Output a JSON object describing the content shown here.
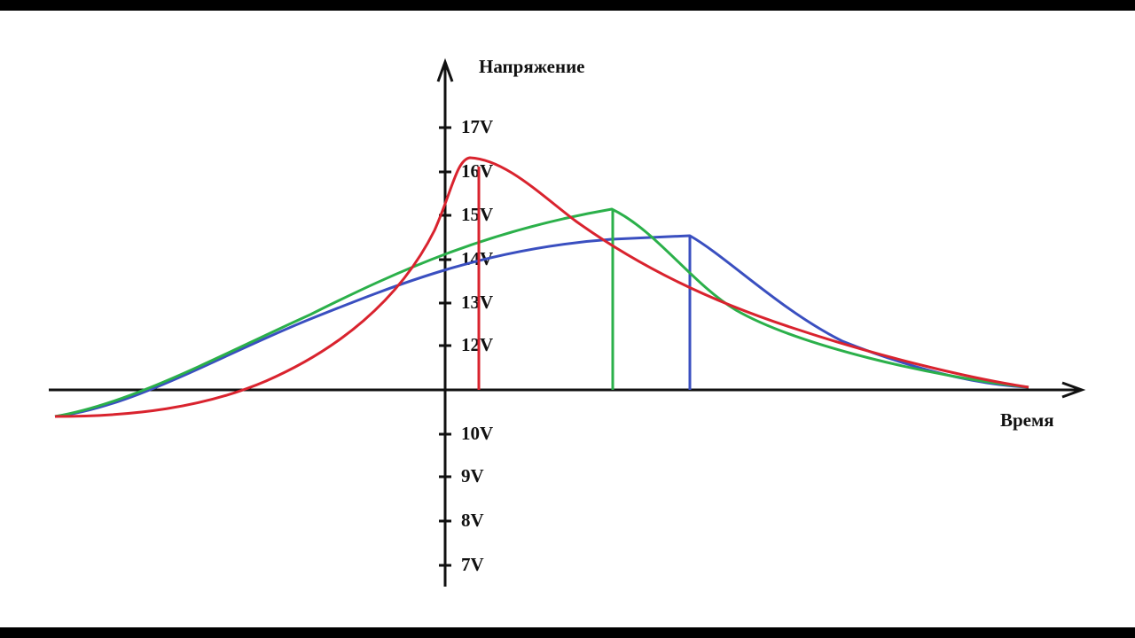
{
  "axes": {
    "y_label": "Напряжение",
    "x_label": "Время"
  },
  "y_ticks": [
    "17V",
    "16V",
    "15V",
    "14V",
    "13V",
    "12V",
    "10V",
    "9V",
    "8V",
    "7V"
  ]
}
